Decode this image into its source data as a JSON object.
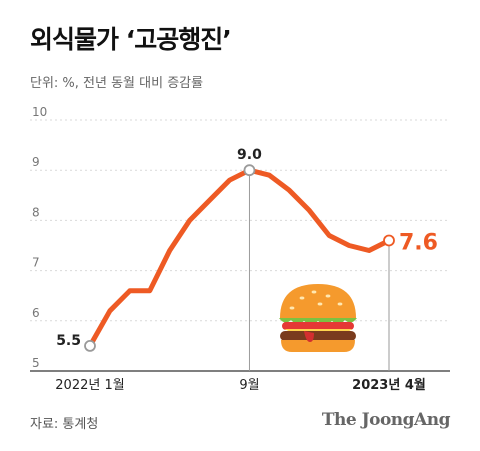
{
  "header": {
    "title": "외식물가 ‘고공행진’",
    "subtitle": "단위: %, 전년 동월 대비 증감률"
  },
  "footer": {
    "source": "자료: 통계청",
    "brand": "The JoongAng"
  },
  "colors": {
    "line": "#ee5a24",
    "grid": "#d9d9d9",
    "marker": "#9a9a9a"
  },
  "icon": "hamburger-icon",
  "chart_data": {
    "type": "line",
    "ylim": [
      5,
      10
    ],
    "yticks": [
      5,
      6,
      7,
      8,
      9,
      10
    ],
    "x_count": 16,
    "xtick_labels": [
      {
        "index": 0,
        "label": "2022년 1월",
        "bold": false
      },
      {
        "index": 8,
        "label": "9월",
        "bold": false
      },
      {
        "index": 15,
        "label": "2023년 4월",
        "bold": true
      }
    ],
    "series": [
      {
        "values": [
          5.5,
          6.2,
          6.6,
          6.6,
          7.4,
          8.0,
          8.4,
          8.8,
          9.0,
          8.9,
          8.6,
          8.2,
          7.7,
          7.5,
          7.4,
          7.6
        ]
      }
    ],
    "annotations": [
      {
        "index": 0,
        "label": "5.5",
        "pos": "left",
        "highlight": false
      },
      {
        "index": 8,
        "label": "9.0",
        "pos": "top",
        "highlight": false
      },
      {
        "index": 15,
        "label": "7.6",
        "pos": "right",
        "highlight": true
      }
    ],
    "grid": true
  }
}
